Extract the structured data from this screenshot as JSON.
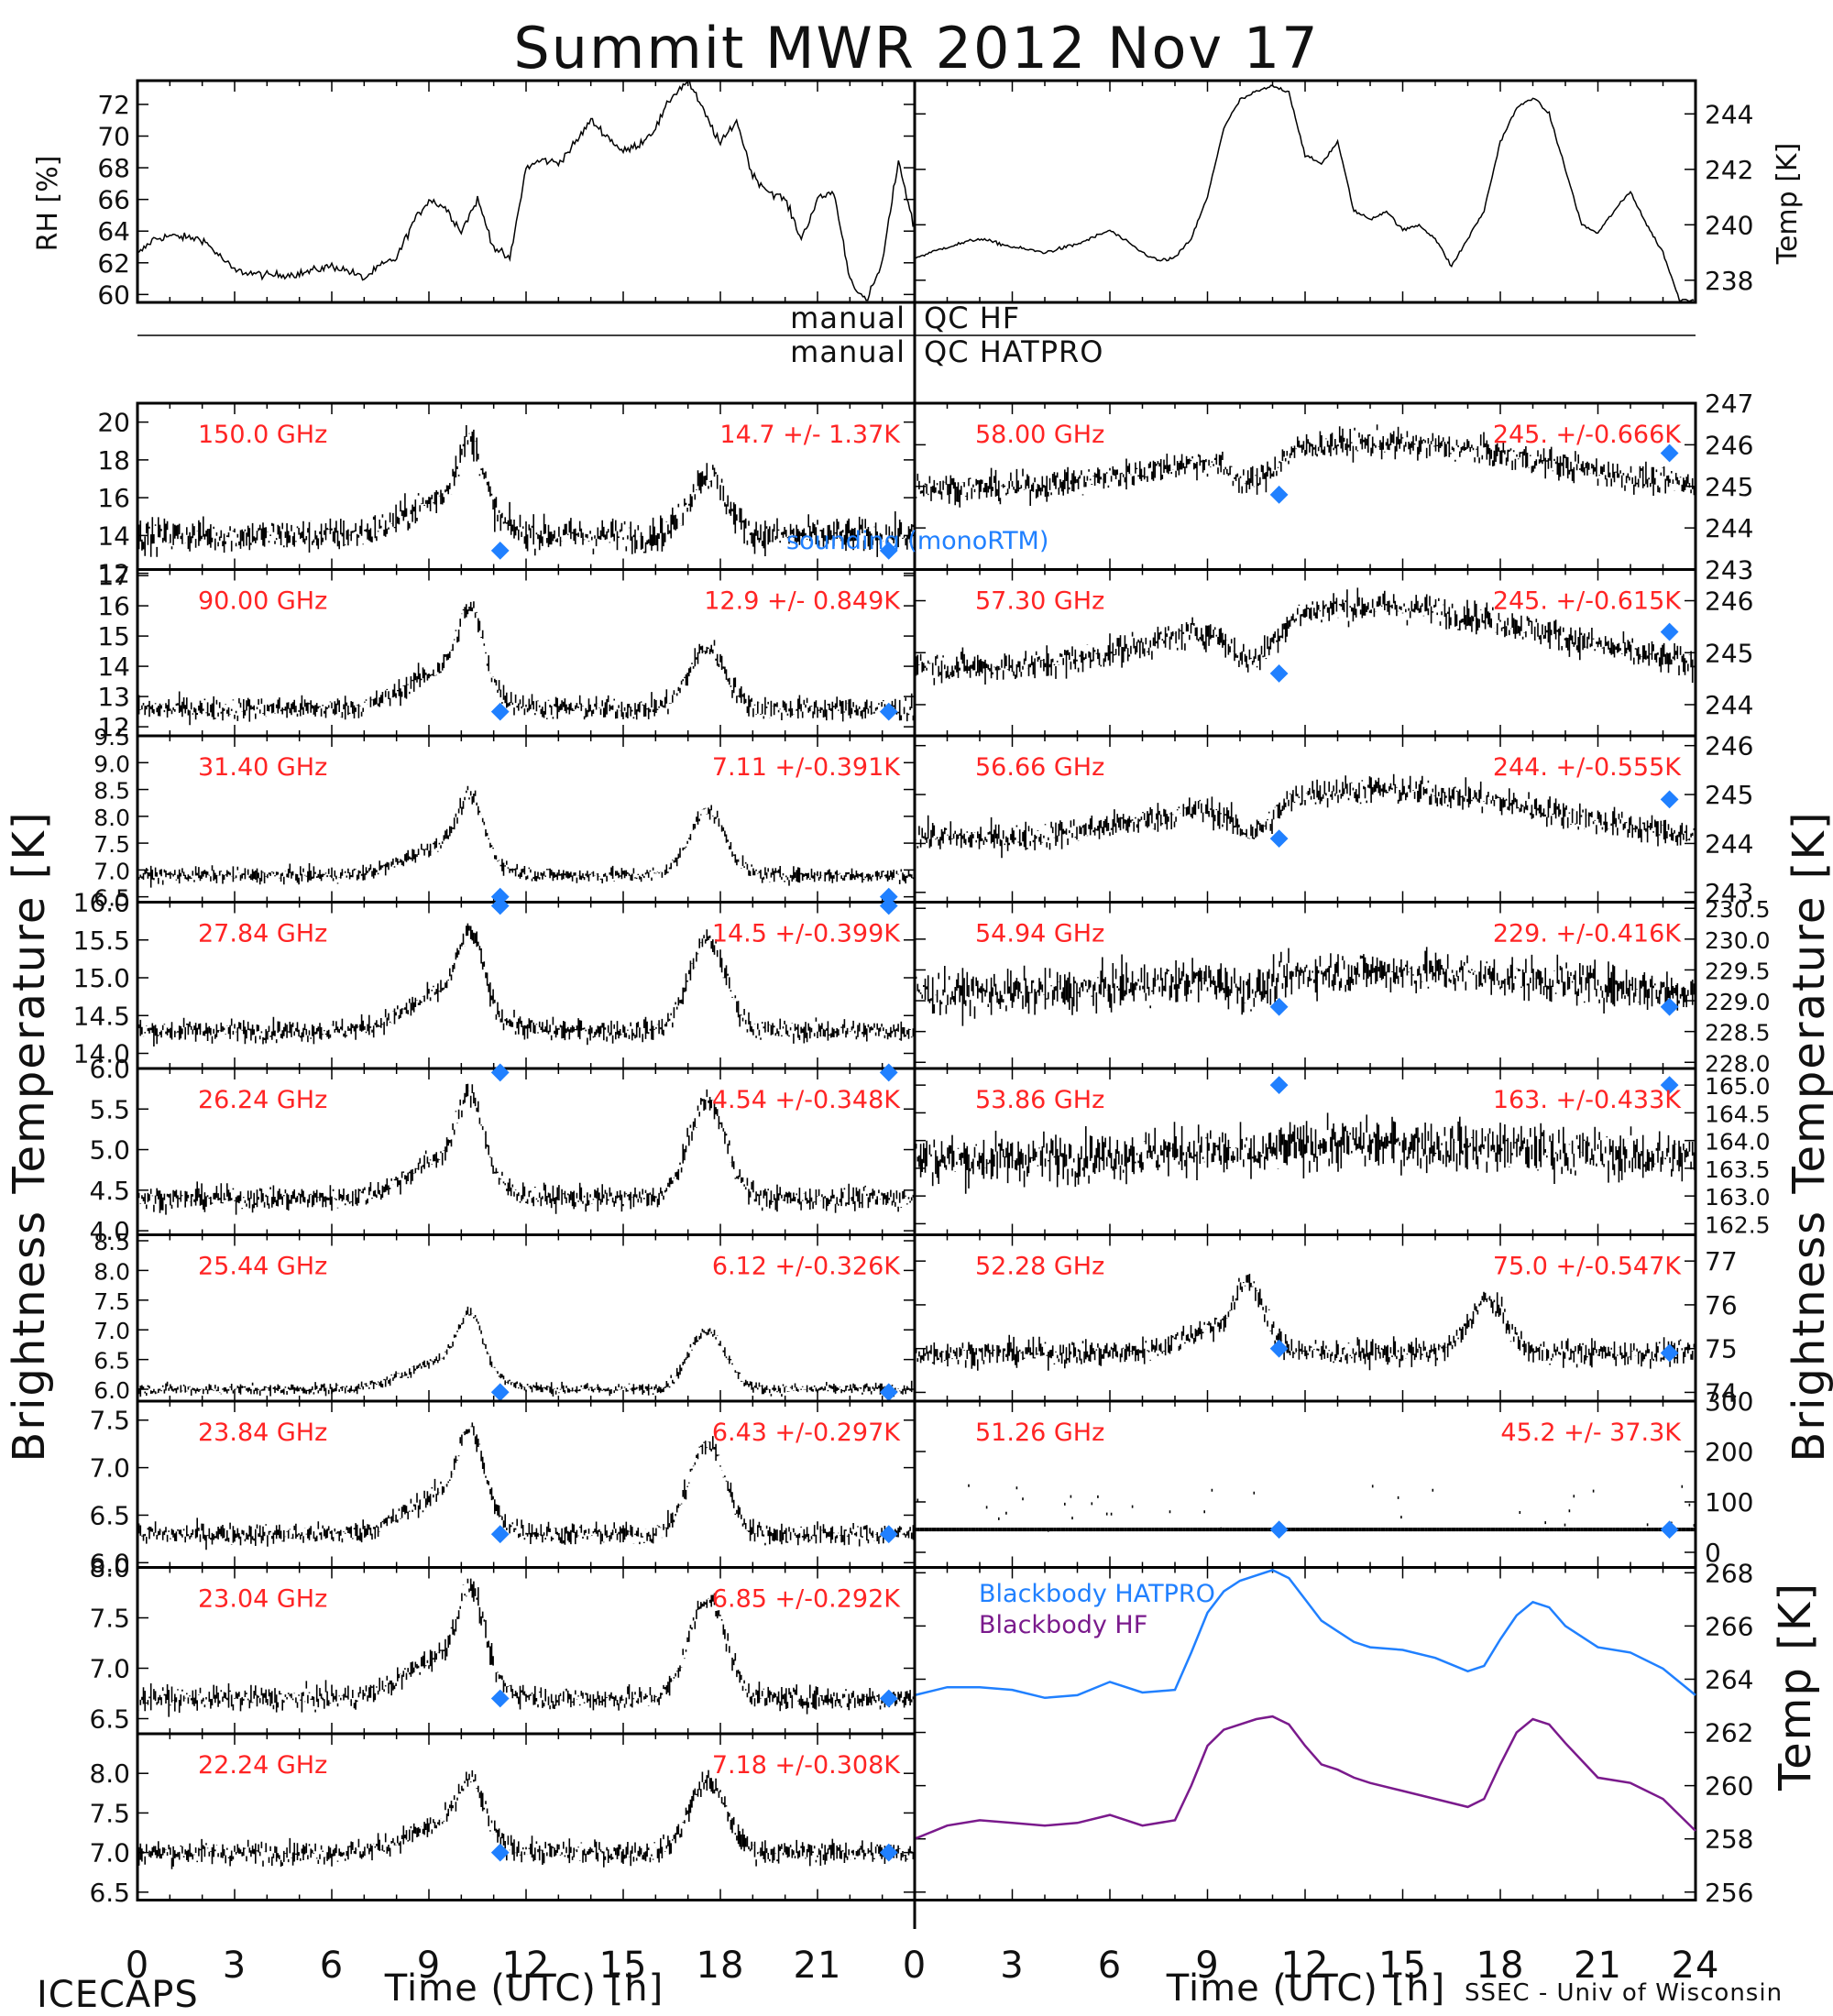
{
  "title": "Summit MWR 2012 Nov 17",
  "colors": {
    "annotation": "#ff2424",
    "sounding": "#2080ff",
    "bb_hatpro": "#2080ff",
    "bb_hf": "#7a1a8c",
    "data": "#000000"
  },
  "labels": {
    "qc_manual_1": "manual",
    "qc_hf": "QC HF",
    "qc_manual_2": "manual",
    "qc_hatpro": "QC HATPRO",
    "left_ylabel": "Brightness Temperature [K]",
    "right_ylabel": "Brightness Temperature [K]",
    "rh_ylabel": "RH [%]",
    "temp_ylabel": "Temp [K]",
    "bb_ylabel": "Temp [K]",
    "xlabel_left": "Time (UTC) [h]",
    "xlabel_right": "Time (UTC) [h]",
    "footer_left": "ICECAPS",
    "footer_right": "SSEC - Univ of Wisconsin",
    "sounding_label": "sounding (monoRTM)",
    "bb_hatpro_label": "Blackbody HATPRO",
    "bb_hf_label": "Blackbody HF"
  },
  "chart_data": {
    "type": "line",
    "xlim": [
      0,
      24
    ],
    "x_ticks": [
      "0",
      "3",
      "6",
      "9",
      "12",
      "15",
      "18",
      "21",
      "0",
      "3",
      "6",
      "9",
      "12",
      "15",
      "18",
      "21",
      "24"
    ],
    "top": {
      "rh": {
        "ylabel": "RH [%]",
        "ylim": [
          59.5,
          73.5
        ],
        "ticks": [
          "60",
          "62",
          "64",
          "66",
          "68",
          "70",
          "72"
        ],
        "x": [
          0,
          0.5,
          1,
          2,
          2.5,
          3,
          4,
          5,
          6,
          6.5,
          7,
          7.5,
          8,
          8.5,
          9,
          9.5,
          10,
          10.5,
          11,
          11.5,
          12,
          12.5,
          13,
          13.5,
          14,
          14.5,
          15,
          15.5,
          16,
          16.5,
          17,
          17.5,
          18,
          18.5,
          19,
          19.5,
          20,
          20.5,
          21,
          21.5,
          22,
          22.5,
          23,
          23.5,
          24
        ],
        "y": [
          62.5,
          63.5,
          63.7,
          63.5,
          62.5,
          61.5,
          61.2,
          61.3,
          61.8,
          61.5,
          61.0,
          61.8,
          62.3,
          64.5,
          66.0,
          65.5,
          64.0,
          66.0,
          63.0,
          62.2,
          68.0,
          68.5,
          68.3,
          69.5,
          71.0,
          70.0,
          69.0,
          69.5,
          70.5,
          72.5,
          73.5,
          71.5,
          69.5,
          71.0,
          67.5,
          66.5,
          66.0,
          63.5,
          66.0,
          66.5,
          61.0,
          59.5,
          62.0,
          68.5,
          64.0
        ]
      },
      "temp": {
        "ylabel": "Temp [K]",
        "ylim": [
          237.2,
          245.2
        ],
        "ticks": [
          "238",
          "240",
          "242",
          "244"
        ],
        "x": [
          0,
          1,
          2,
          3,
          4,
          5,
          6,
          7,
          7.5,
          8,
          8.5,
          9,
          9.5,
          10,
          10.5,
          11,
          11.5,
          12,
          12.5,
          13,
          13.5,
          14,
          14.5,
          15,
          15.5,
          16,
          16.5,
          17,
          17.5,
          18,
          18.5,
          19,
          19.5,
          20,
          20.5,
          21,
          21.5,
          22,
          22.5,
          23,
          23.5,
          24
        ],
        "y": [
          238.8,
          239.2,
          239.5,
          239.2,
          239.0,
          239.3,
          239.8,
          239.0,
          238.7,
          238.8,
          239.5,
          241.0,
          243.5,
          244.5,
          244.8,
          245.0,
          244.8,
          242.5,
          242.2,
          243.0,
          240.5,
          240.2,
          240.5,
          239.8,
          240.0,
          239.5,
          238.5,
          239.5,
          240.5,
          243.0,
          244.2,
          244.6,
          244.0,
          242.0,
          240.0,
          239.7,
          240.5,
          241.2,
          240.0,
          239.0,
          237.3,
          237.3
        ]
      }
    },
    "channels": [
      {
        "freq": "150.0 GHz",
        "stats": "14.7 +/- 1.37K",
        "ylim": [
          12.2,
          21.0
        ],
        "ticks": [
          "12",
          "14",
          "16",
          "18",
          "20"
        ],
        "baseline": 14.0,
        "noise": 0.9,
        "peak1": 5.5,
        "peak2": 3.2,
        "col": 0,
        "sounding": [
          13.2,
          13.2
        ]
      },
      {
        "freq": "90.00 GHz",
        "stats": "12.9 +/- 0.849K",
        "ylim": [
          11.7,
          17.2
        ],
        "ticks": [
          "12",
          "13",
          "14",
          "15",
          "16",
          "17"
        ],
        "baseline": 12.6,
        "noise": 0.4,
        "peak1": 3.6,
        "peak2": 2.0,
        "col": 0,
        "sounding": [
          12.5,
          12.5
        ]
      },
      {
        "freq": "31.40 GHz",
        "stats": "7.11 +/-0.391K",
        "ylim": [
          6.4,
          9.5
        ],
        "ticks": [
          "6.5",
          "7.0",
          "7.5",
          "8.0",
          "8.5",
          "9.0",
          "9.5"
        ],
        "baseline": 6.9,
        "noise": 0.15,
        "peak1": 1.6,
        "peak2": 1.2,
        "col": 0,
        "sounding": [
          6.5,
          6.5
        ]
      },
      {
        "freq": "27.84 GHz",
        "stats": "14.5 +/-0.399K",
        "ylim": [
          13.8,
          16.0
        ],
        "ticks": [
          "14.0",
          "14.5",
          "15.0",
          "15.5",
          "16.0"
        ],
        "baseline": 14.3,
        "noise": 0.15,
        "peak1": 1.4,
        "peak2": 1.2,
        "col": 0,
        "sounding": [
          16.2,
          16.2
        ]
      },
      {
        "freq": "26.24 GHz",
        "stats": "4.54 +/-0.348K",
        "ylim": [
          3.95,
          6.0
        ],
        "ticks": [
          "4.0",
          "4.5",
          "5.0",
          "5.5",
          "6.0"
        ],
        "baseline": 4.4,
        "noise": 0.15,
        "peak1": 1.4,
        "peak2": 1.2,
        "col": 0,
        "sounding": [
          5.95,
          5.95
        ]
      },
      {
        "freq": "25.44 GHz",
        "stats": "6.12 +/-0.326K",
        "ylim": [
          5.8,
          8.6
        ],
        "ticks": [
          "6.0",
          "6.5",
          "7.0",
          "7.5",
          "8.0",
          "8.5"
        ],
        "baseline": 6.0,
        "noise": 0.1,
        "peak1": 1.4,
        "peak2": 1.0,
        "col": 0,
        "sounding": [
          5.95,
          5.95
        ]
      },
      {
        "freq": "23.84 GHz",
        "stats": "6.43 +/-0.297K",
        "ylim": [
          5.95,
          7.7
        ],
        "ticks": [
          "6.0",
          "6.5",
          "7.0",
          "7.5"
        ],
        "baseline": 6.3,
        "noise": 0.12,
        "peak1": 1.2,
        "peak2": 0.95,
        "col": 0,
        "sounding": [
          6.3,
          6.3
        ]
      },
      {
        "freq": "23.04 GHz",
        "stats": "6.85 +/-0.292K",
        "ylim": [
          6.35,
          8.0
        ],
        "ticks": [
          "6.5",
          "7.0",
          "7.5",
          "8.0"
        ],
        "baseline": 6.7,
        "noise": 0.12,
        "peak1": 1.2,
        "peak2": 1.0,
        "col": 0,
        "sounding": [
          6.7,
          6.7
        ]
      },
      {
        "freq": "22.24 GHz",
        "stats": "7.18 +/-0.308K",
        "ylim": [
          6.4,
          8.5
        ],
        "ticks": [
          "6.5",
          "7.0",
          "7.5",
          "8.0"
        ],
        "baseline": 7.0,
        "noise": 0.15,
        "peak1": 1.0,
        "peak2": 0.9,
        "col": 0,
        "sounding": [
          7.0,
          7.0
        ]
      },
      {
        "freq": "58.00 GHz",
        "stats": "245. +/-0.666K",
        "ylim": [
          243.0,
          247.0
        ],
        "ticks": [
          "243",
          "244",
          "245",
          "246",
          "247"
        ],
        "baseline": 245.5,
        "noise": 0.35,
        "dip": 1.2,
        "col": 1,
        "sounding": [
          244.8,
          245.8
        ]
      },
      {
        "freq": "57.30 GHz",
        "stats": "245. +/-0.615K",
        "ylim": [
          243.4,
          246.6
        ],
        "ticks": [
          "244",
          "245",
          "246"
        ],
        "baseline": 245.3,
        "noise": 0.3,
        "dip": 1.3,
        "col": 1,
        "sounding": [
          244.6,
          245.4
        ]
      },
      {
        "freq": "56.66 GHz",
        "stats": "244. +/-0.555K",
        "ylim": [
          242.8,
          246.2
        ],
        "ticks": [
          "243",
          "244",
          "245",
          "246"
        ],
        "baseline": 244.6,
        "noise": 0.3,
        "dip": 1.1,
        "col": 1,
        "sounding": [
          244.1,
          244.9
        ]
      },
      {
        "freq": "54.94 GHz",
        "stats": "229. +/-0.416K",
        "ylim": [
          227.9,
          230.6
        ],
        "ticks": [
          "228.0",
          "228.5",
          "229.0",
          "229.5",
          "230.0",
          "230.5"
        ],
        "baseline": 229.3,
        "noise": 0.35,
        "dip": 0.4,
        "col": 1,
        "sounding": [
          228.9,
          228.9
        ]
      },
      {
        "freq": "53.86 GHz",
        "stats": "163. +/-0.433K",
        "ylim": [
          162.3,
          165.3
        ],
        "ticks": [
          "162.5",
          "163.0",
          "163.5",
          "164.0",
          "164.5",
          "165.0"
        ],
        "baseline": 163.8,
        "noise": 0.45,
        "dip": 0.3,
        "col": 1,
        "sounding": [
          165.0,
          165.0
        ]
      },
      {
        "freq": "52.28 GHz",
        "stats": "75.0 +/-0.547K",
        "ylim": [
          73.8,
          77.6
        ],
        "ticks": [
          "74",
          "75",
          "76",
          "77"
        ],
        "baseline": 74.9,
        "noise": 0.3,
        "peak1": 1.8,
        "peak2": 1.2,
        "col": 1,
        "sounding": [
          75.0,
          74.9
        ]
      },
      {
        "freq": "51.26 GHz",
        "stats": "45.2 +/- 37.3K",
        "ylim": [
          -30,
          300
        ],
        "ticks": [
          "0",
          "100",
          "200",
          "300"
        ],
        "baseline": 45.2,
        "noise": 3,
        "col": 1,
        "sounding": [
          45,
          45
        ]
      }
    ],
    "sounding_times": [
      11.2,
      23.2
    ],
    "blackbody": {
      "ylabel": "Temp [K]",
      "ylim": [
        255.7,
        268.2
      ],
      "ticks": [
        "256",
        "258",
        "260",
        "262",
        "264",
        "266",
        "268"
      ],
      "x": [
        0,
        1,
        2,
        3,
        4,
        5,
        6,
        7,
        8,
        8.5,
        9,
        9.5,
        10,
        10.5,
        11,
        11.5,
        12,
        12.5,
        13,
        13.5,
        14,
        15,
        16,
        17,
        17.5,
        18,
        18.5,
        19,
        19.5,
        20,
        21,
        22,
        23,
        24
      ],
      "hatpro": [
        263.4,
        263.7,
        263.7,
        263.6,
        263.3,
        263.4,
        263.9,
        263.5,
        263.6,
        265.0,
        266.5,
        267.3,
        267.7,
        267.9,
        268.1,
        267.8,
        267.0,
        266.2,
        265.8,
        265.4,
        265.2,
        265.1,
        264.8,
        264.3,
        264.5,
        265.5,
        266.4,
        266.9,
        266.7,
        266.0,
        265.2,
        265.0,
        264.4,
        263.4
      ],
      "hf": [
        258.0,
        258.5,
        258.7,
        258.6,
        258.5,
        258.6,
        258.9,
        258.5,
        258.7,
        260.0,
        261.5,
        262.1,
        262.3,
        262.5,
        262.6,
        262.3,
        261.5,
        260.8,
        260.6,
        260.3,
        260.1,
        259.8,
        259.5,
        259.2,
        259.5,
        260.8,
        262.0,
        262.5,
        262.3,
        261.6,
        260.3,
        260.1,
        259.5,
        258.3
      ]
    }
  }
}
